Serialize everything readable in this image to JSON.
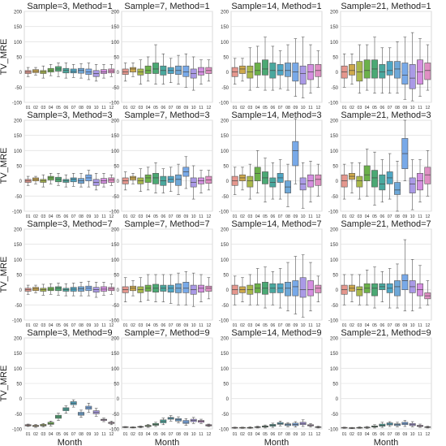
{
  "figure": {
    "ylabel": "TV_MRE",
    "xlabel": "Month"
  },
  "chart_data": {
    "type": "box",
    "layout": "4x4 grid of box-plot panels, rows share y-range",
    "months": [
      "01",
      "02",
      "03",
      "04",
      "05",
      "06",
      "07",
      "08",
      "09",
      "10",
      "11",
      "12"
    ],
    "yticks": [
      -100,
      -50,
      0,
      50,
      100,
      150,
      200
    ],
    "ylim": [
      -100,
      200
    ],
    "grid": true,
    "palette": [
      "#e5978e",
      "#cfa94c",
      "#a9b84b",
      "#6bb14a",
      "#4ba974",
      "#4aa89e",
      "#4ea6c3",
      "#6fa8d8",
      "#78a9e8",
      "#aa9ae6",
      "#d58fe1",
      "#e08fc3"
    ],
    "panels": [
      {
        "title": "Sample=3, Method=1",
        "medians": [
          0,
          3,
          0,
          5,
          10,
          5,
          2,
          5,
          0,
          -5,
          0,
          3
        ],
        "q1": [
          -5,
          -2,
          -5,
          0,
          3,
          -3,
          -3,
          -4,
          -8,
          -15,
          -5,
          -3
        ],
        "q3": [
          5,
          8,
          5,
          12,
          18,
          12,
          10,
          12,
          10,
          5,
          8,
          10
        ],
        "wlo": [
          -15,
          -10,
          -20,
          -12,
          -15,
          -20,
          -18,
          -20,
          -25,
          -30,
          -20,
          -15
        ],
        "whi": [
          15,
          15,
          20,
          25,
          30,
          30,
          25,
          28,
          30,
          25,
          25,
          25
        ]
      },
      {
        "title": "Sample=7, Method=1",
        "medians": [
          0,
          10,
          0,
          5,
          10,
          5,
          5,
          5,
          0,
          -5,
          0,
          5
        ],
        "q1": [
          -8,
          0,
          -10,
          -5,
          -5,
          -10,
          -5,
          -8,
          -15,
          -20,
          -10,
          -5
        ],
        "q3": [
          10,
          15,
          10,
          20,
          30,
          20,
          15,
          20,
          20,
          10,
          15,
          15
        ],
        "wlo": [
          -30,
          -15,
          -40,
          -30,
          -40,
          -40,
          -35,
          -40,
          -50,
          -60,
          -40,
          -30
        ],
        "whi": [
          30,
          30,
          40,
          50,
          90,
          60,
          45,
          55,
          60,
          50,
          40,
          40
        ]
      },
      {
        "title": "Sample=14, Method=1",
        "medians": [
          0,
          10,
          0,
          5,
          10,
          5,
          5,
          5,
          0,
          -5,
          0,
          5
        ],
        "q1": [
          -15,
          -5,
          -20,
          -10,
          -10,
          -20,
          -10,
          -15,
          -30,
          -40,
          -25,
          -15
        ],
        "q3": [
          15,
          20,
          20,
          30,
          40,
          30,
          25,
          30,
          30,
          20,
          25,
          25
        ],
        "wlo": [
          -40,
          -30,
          -60,
          -50,
          -60,
          -60,
          -55,
          -60,
          -80,
          -85,
          -70,
          -50
        ],
        "whi": [
          45,
          45,
          80,
          85,
          115,
          85,
          70,
          90,
          110,
          115,
          90,
          70
        ]
      },
      {
        "title": "Sample=21, Method=1",
        "medians": [
          0,
          5,
          0,
          5,
          10,
          0,
          5,
          10,
          -10,
          -20,
          0,
          5
        ],
        "q1": [
          -20,
          -10,
          -30,
          -20,
          -20,
          -20,
          -10,
          -20,
          -40,
          -55,
          -40,
          -25
        ],
        "q3": [
          20,
          25,
          35,
          40,
          40,
          25,
          35,
          35,
          30,
          25,
          40,
          30
        ],
        "wlo": [
          -50,
          -40,
          -70,
          -60,
          -70,
          -70,
          -70,
          -70,
          -90,
          -95,
          -80,
          -60
        ],
        "whi": [
          60,
          60,
          90,
          90,
          115,
          80,
          80,
          100,
          115,
          130,
          110,
          90
        ]
      },
      {
        "title": "Sample=3, Method=3",
        "medians": [
          0,
          5,
          0,
          10,
          5,
          0,
          5,
          0,
          10,
          -5,
          0,
          3
        ],
        "q1": [
          -5,
          0,
          -5,
          3,
          -3,
          -5,
          -3,
          -8,
          0,
          -15,
          -8,
          -5
        ],
        "q3": [
          5,
          10,
          5,
          15,
          12,
          5,
          10,
          8,
          20,
          5,
          8,
          10
        ],
        "wlo": [
          -15,
          -10,
          -20,
          -10,
          -15,
          -20,
          -18,
          -20,
          -20,
          -30,
          -20,
          -15
        ],
        "whi": [
          15,
          15,
          20,
          25,
          25,
          20,
          25,
          25,
          35,
          25,
          25,
          20
        ]
      },
      {
        "title": "Sample=7, Method=3",
        "medians": [
          0,
          10,
          0,
          10,
          10,
          0,
          5,
          5,
          30,
          -5,
          0,
          3
        ],
        "q1": [
          -10,
          3,
          -10,
          -5,
          -10,
          -15,
          -5,
          -15,
          15,
          -20,
          -10,
          -8
        ],
        "q3": [
          10,
          15,
          10,
          20,
          25,
          15,
          15,
          20,
          45,
          10,
          10,
          15
        ],
        "wlo": [
          -30,
          -10,
          -35,
          -30,
          -40,
          -40,
          -35,
          -45,
          -25,
          -60,
          -40,
          -30
        ],
        "whi": [
          30,
          25,
          40,
          45,
          60,
          40,
          45,
          55,
          80,
          50,
          35,
          35
        ]
      },
      {
        "title": "Sample=14, Method=3",
        "medians": [
          0,
          10,
          0,
          25,
          10,
          -5,
          10,
          -20,
          100,
          -10,
          0,
          5
        ],
        "q1": [
          -15,
          0,
          -20,
          0,
          -10,
          -20,
          -5,
          -40,
          50,
          -30,
          -20,
          -15
        ],
        "q3": [
          15,
          20,
          15,
          45,
          30,
          10,
          25,
          0,
          130,
          10,
          20,
          20
        ],
        "wlo": [
          -45,
          -30,
          -60,
          -40,
          -70,
          -60,
          -60,
          -85,
          -10,
          -90,
          -70,
          -50
        ],
        "whi": [
          45,
          45,
          55,
          100,
          75,
          60,
          70,
          55,
          205,
          60,
          65,
          55
        ]
      },
      {
        "title": "Sample=21, Method=3",
        "medians": [
          0,
          15,
          0,
          20,
          10,
          -10,
          10,
          -30,
          90,
          -10,
          0,
          20
        ],
        "q1": [
          -20,
          5,
          -20,
          0,
          -20,
          -30,
          -10,
          -45,
          40,
          -40,
          -30,
          -10
        ],
        "q3": [
          20,
          25,
          15,
          50,
          35,
          20,
          30,
          -5,
          140,
          10,
          25,
          45
        ],
        "wlo": [
          -60,
          -40,
          -60,
          -50,
          -80,
          -70,
          -60,
          -100,
          0,
          -95,
          -70,
          -50
        ],
        "whi": [
          55,
          60,
          60,
          105,
          95,
          70,
          90,
          65,
          200,
          70,
          70,
          100
        ]
      },
      {
        "title": "Sample=3, Method=7",
        "medians": [
          0,
          3,
          0,
          2,
          5,
          0,
          2,
          3,
          5,
          0,
          2,
          3
        ],
        "q1": [
          -5,
          -3,
          -5,
          -3,
          -3,
          -5,
          -5,
          -5,
          -3,
          -8,
          -5,
          -3
        ],
        "q3": [
          5,
          8,
          5,
          8,
          10,
          5,
          8,
          10,
          12,
          8,
          10,
          8
        ],
        "wlo": [
          -15,
          -10,
          -18,
          -15,
          -18,
          -20,
          -20,
          -20,
          -20,
          -25,
          -18,
          -15
        ],
        "whi": [
          15,
          15,
          18,
          20,
          22,
          20,
          22,
          25,
          28,
          25,
          25,
          20
        ]
      },
      {
        "title": "Sample=7, Method=7",
        "medians": [
          0,
          5,
          0,
          5,
          5,
          5,
          5,
          5,
          5,
          0,
          5,
          5
        ],
        "q1": [
          -10,
          -3,
          -10,
          -5,
          -8,
          -5,
          -8,
          -10,
          -10,
          -15,
          -8,
          -5
        ],
        "q3": [
          10,
          12,
          10,
          15,
          18,
          15,
          15,
          20,
          25,
          15,
          15,
          12
        ],
        "wlo": [
          -40,
          -20,
          -40,
          -35,
          -40,
          -40,
          -45,
          -50,
          -50,
          -55,
          -40,
          -30
        ],
        "whi": [
          40,
          30,
          40,
          50,
          50,
          50,
          50,
          55,
          60,
          55,
          50,
          40
        ]
      },
      {
        "title": "Sample=14, Method=7",
        "medians": [
          0,
          0,
          0,
          5,
          5,
          5,
          5,
          5,
          10,
          0,
          0,
          5
        ],
        "q1": [
          -15,
          -10,
          -15,
          -10,
          -15,
          -10,
          -10,
          -20,
          -20,
          -25,
          -20,
          -10
        ],
        "q3": [
          15,
          10,
          15,
          20,
          25,
          20,
          20,
          25,
          30,
          40,
          30,
          15
        ],
        "wlo": [
          -50,
          -40,
          -50,
          -50,
          -60,
          -50,
          -60,
          -70,
          -80,
          -90,
          -70,
          -40
        ],
        "whi": [
          45,
          40,
          50,
          70,
          75,
          60,
          70,
          90,
          110,
          115,
          90,
          45
        ]
      },
      {
        "title": "Sample=21, Method=7",
        "medians": [
          0,
          5,
          0,
          5,
          5,
          10,
          5,
          10,
          30,
          10,
          0,
          -20
        ],
        "q1": [
          -15,
          -5,
          -20,
          -10,
          -20,
          0,
          -10,
          -20,
          0,
          -10,
          -20,
          -30
        ],
        "q3": [
          15,
          15,
          10,
          20,
          20,
          20,
          20,
          30,
          50,
          30,
          20,
          -10
        ],
        "wlo": [
          -50,
          -40,
          -50,
          -50,
          -60,
          -40,
          -60,
          -60,
          -70,
          -70,
          -60,
          -50
        ],
        "whi": [
          50,
          50,
          50,
          65,
          75,
          60,
          70,
          85,
          165,
          100,
          80,
          30
        ]
      },
      {
        "title": "Sample=3, Method=9",
        "medians": [
          -88,
          -90,
          -88,
          -82,
          -60,
          -35,
          -15,
          -50,
          -30,
          -45,
          -70,
          -80
        ],
        "q1": [
          -90,
          -92,
          -90,
          -85,
          -65,
          -40,
          -20,
          -55,
          -35,
          -50,
          -72,
          -82
        ],
        "q3": [
          -86,
          -88,
          -85,
          -78,
          -55,
          -30,
          -10,
          -45,
          -25,
          -40,
          -68,
          -78
        ],
        "wlo": [
          -92,
          -95,
          -93,
          -90,
          -72,
          -48,
          -28,
          -62,
          -45,
          -58,
          -76,
          -86
        ],
        "whi": [
          -84,
          -85,
          -82,
          -74,
          -48,
          -24,
          -4,
          -38,
          -15,
          -32,
          -64,
          -74
        ]
      },
      {
        "title": "Sample=7, Method=9",
        "medians": [
          -94,
          -95,
          -93,
          -90,
          -85,
          -75,
          -65,
          -70,
          -78,
          -72,
          -75,
          -88
        ],
        "q1": [
          -95,
          -96,
          -94,
          -92,
          -88,
          -80,
          -68,
          -74,
          -82,
          -76,
          -78,
          -90
        ],
        "q3": [
          -93,
          -94,
          -92,
          -88,
          -82,
          -70,
          -62,
          -66,
          -72,
          -68,
          -72,
          -86
        ],
        "wlo": [
          -96,
          -97,
          -96,
          -95,
          -92,
          -86,
          -74,
          -80,
          -88,
          -82,
          -82,
          -92
        ],
        "whi": [
          -92,
          -93,
          -90,
          -85,
          -78,
          -64,
          -56,
          -60,
          -66,
          -62,
          -68,
          -84
        ]
      },
      {
        "title": "Sample=14, Method=9",
        "medians": [
          -96,
          -96,
          -96,
          -94,
          -92,
          -88,
          -82,
          -86,
          -85,
          -82,
          -88,
          -94
        ],
        "q1": [
          -97,
          -97,
          -97,
          -95,
          -94,
          -91,
          -85,
          -89,
          -89,
          -86,
          -90,
          -95
        ],
        "q3": [
          -95,
          -95,
          -95,
          -93,
          -90,
          -85,
          -79,
          -83,
          -81,
          -78,
          -86,
          -93
        ],
        "wlo": [
          -98,
          -98,
          -98,
          -97,
          -97,
          -95,
          -90,
          -93,
          -94,
          -92,
          -94,
          -97
        ],
        "whi": [
          -94,
          -94,
          -93,
          -91,
          -87,
          -81,
          -74,
          -79,
          -76,
          -70,
          -82,
          -91
        ]
      },
      {
        "title": "Sample=21, Method=9",
        "medians": [
          -96,
          -97,
          -96,
          -95,
          -92,
          -88,
          -84,
          -86,
          -82,
          -86,
          -90,
          -94
        ],
        "q1": [
          -97,
          -98,
          -97,
          -96,
          -94,
          -91,
          -87,
          -89,
          -86,
          -89,
          -92,
          -95
        ],
        "q3": [
          -95,
          -96,
          -95,
          -94,
          -90,
          -84,
          -80,
          -83,
          -78,
          -82,
          -88,
          -93
        ],
        "wlo": [
          -98,
          -99,
          -98,
          -98,
          -97,
          -95,
          -92,
          -93,
          -92,
          -93,
          -95,
          -97
        ],
        "whi": [
          -94,
          -95,
          -93,
          -92,
          -86,
          -78,
          -76,
          -78,
          -72,
          -76,
          -84,
          -91
        ]
      }
    ]
  }
}
